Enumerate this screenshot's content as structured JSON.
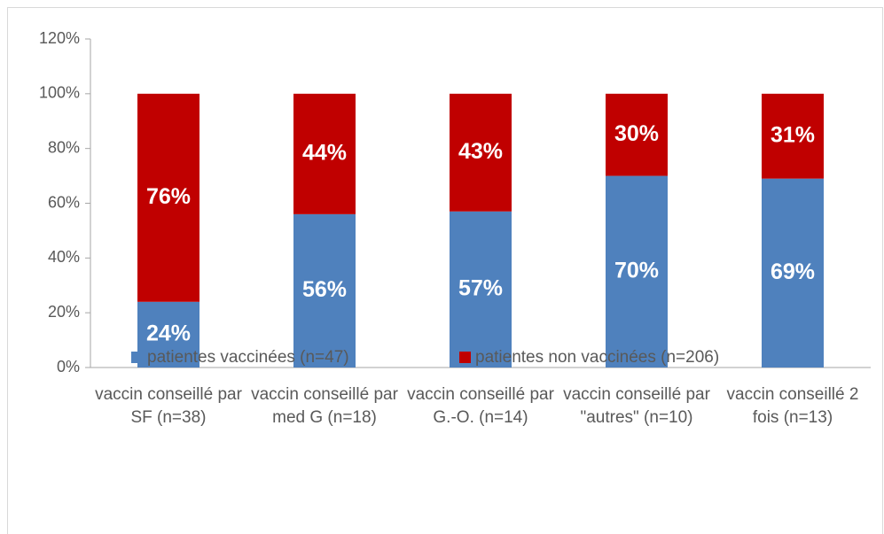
{
  "chart_data": {
    "type": "stacked_bar",
    "categories": [
      "vaccin conseillé par SF (n=38)",
      "vaccin conseillé par med G (n=18)",
      "vaccin conseillé par G.-O. (n=14)",
      "vaccin conseillé par \"autres\" (n=10)",
      "vaccin conseillé 2 fois (n=13)"
    ],
    "series": [
      {
        "name": "patientes vaccinées (n=47)",
        "color": "#4f81bd",
        "values": [
          24,
          56,
          57,
          70,
          69
        ],
        "value_labels": [
          "24%",
          "56%",
          "57%",
          "70%",
          "69%"
        ]
      },
      {
        "name": "patientes non vaccinées (n=206)",
        "color": "#c00000",
        "values": [
          76,
          44,
          43,
          30,
          31
        ],
        "value_labels": [
          "76%",
          "44%",
          "43%",
          "30%",
          "31%"
        ]
      }
    ],
    "ylim": [
      0,
      120
    ],
    "yticks": [
      {
        "value": 0,
        "label": "0%"
      },
      {
        "value": 20,
        "label": "20%"
      },
      {
        "value": 40,
        "label": "40%"
      },
      {
        "value": 60,
        "label": "60%"
      },
      {
        "value": 80,
        "label": "80%"
      },
      {
        "value": 100,
        "label": "100%"
      },
      {
        "value": 120,
        "label": "120%"
      }
    ],
    "legend": "bottom"
  }
}
